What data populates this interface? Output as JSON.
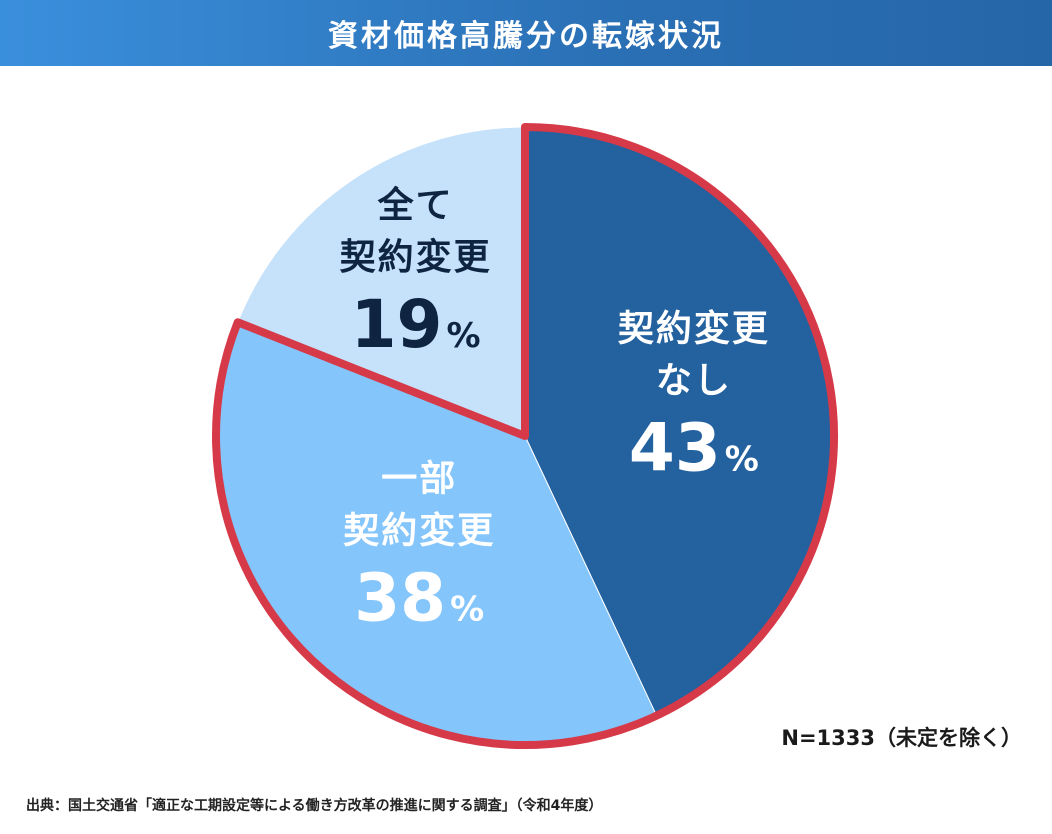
{
  "header": {
    "title": "資材価格高騰分の転嫁状況"
  },
  "colors": {
    "title_bar": "#2a6fb4",
    "slice_none": "#23619f",
    "slice_partial": "#84c5fb",
    "slice_all": "#c6e2fb",
    "highlight_outline": "#d63a48",
    "label_dark": "#0f2440",
    "label_light": "#ffffff"
  },
  "chart_data": {
    "type": "pie",
    "start": "12 o'clock",
    "direction": "clockwise",
    "slices": [
      {
        "label_lines": [
          "契約変更",
          "なし"
        ],
        "value": 43,
        "unit": "%",
        "color": "#23619f",
        "label_color": "#ffffff",
        "highlighted": true
      },
      {
        "label_lines": [
          "一部",
          "契約変更"
        ],
        "value": 38,
        "unit": "%",
        "color": "#84c5fb",
        "label_color": "#ffffff",
        "highlighted": true
      },
      {
        "label_lines": [
          "全て",
          "契約変更"
        ],
        "value": 19,
        "unit": "%",
        "color": "#c6e2fb",
        "label_color": "#0f2440",
        "highlighted": false
      }
    ],
    "legend": "none"
  },
  "notes": {
    "sample": "N=1333（未定を除く）",
    "source": "出典：国土交通省「適正な工期設定等による働き方改革の推進に関する調査」（令和4年度）"
  }
}
